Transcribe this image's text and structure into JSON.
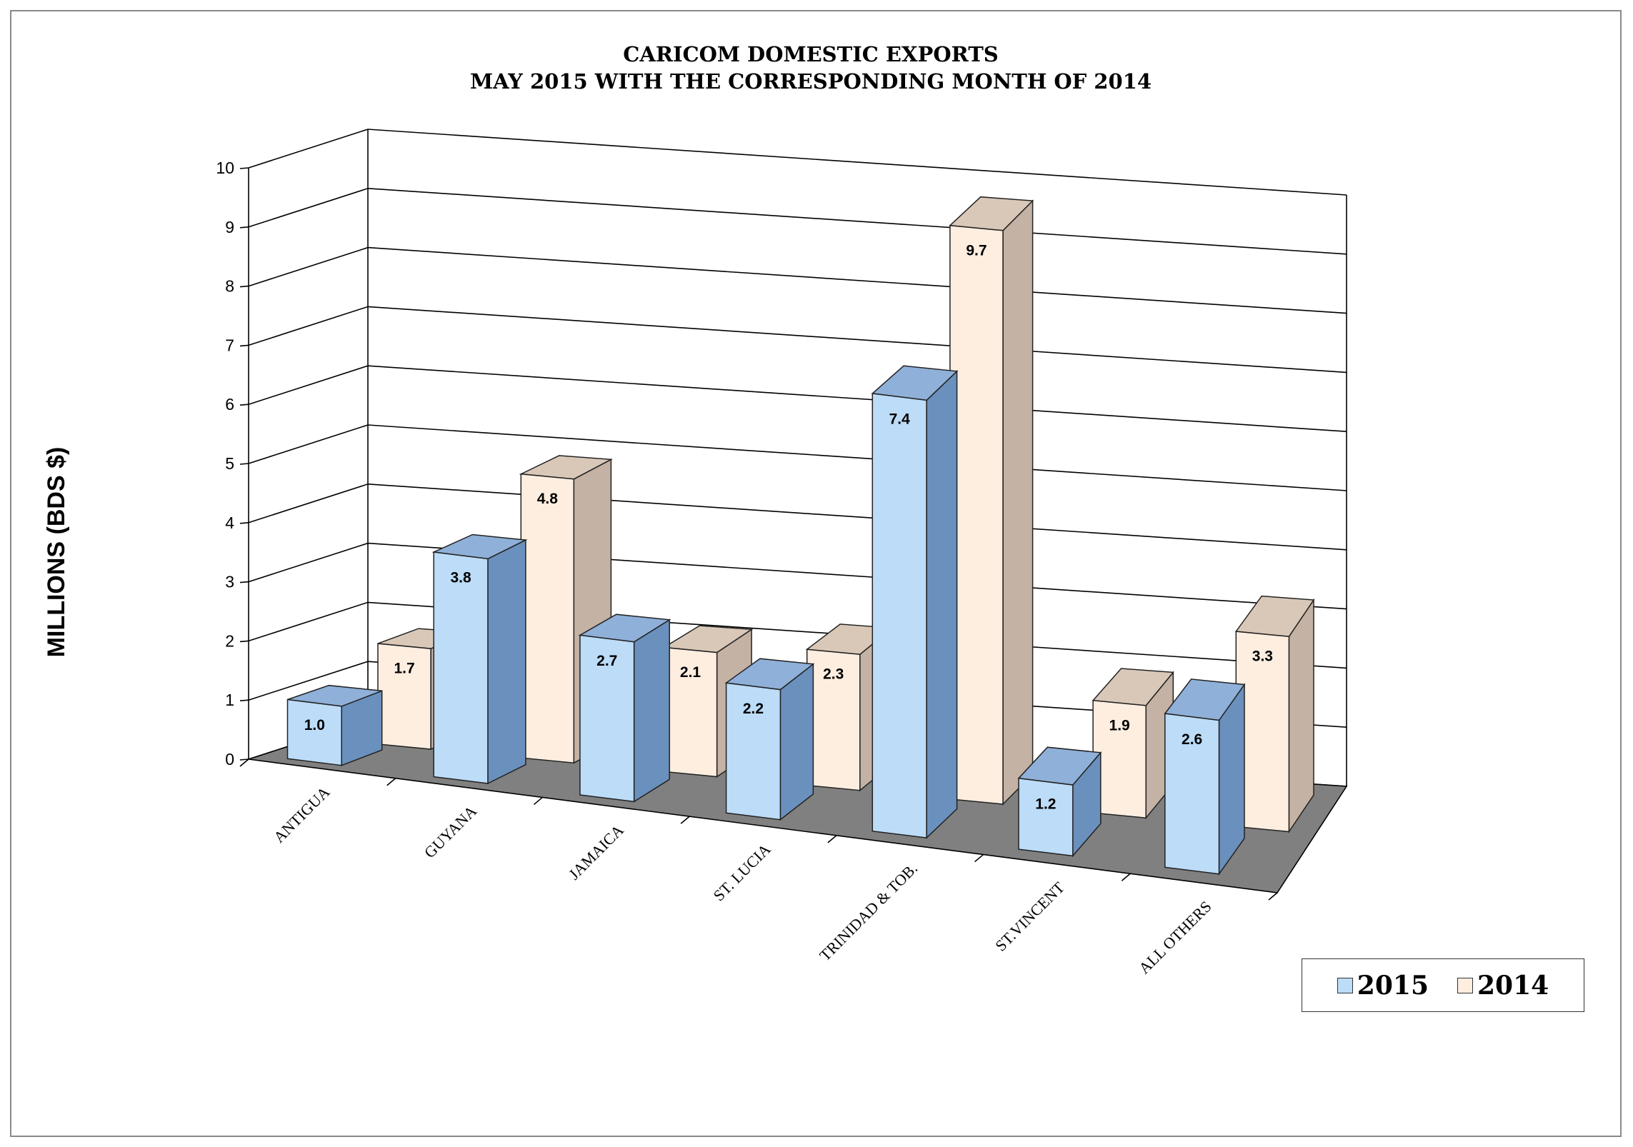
{
  "chart_data": {
    "type": "bar",
    "title": "CARICOM DOMESTIC EXPORTS",
    "subtitle": "MAY 2015 WITH THE CORRESPONDING MONTH OF 2014",
    "ylabel": "MILLIONS (BDS $)",
    "xlabel": "",
    "ylim": [
      0,
      10
    ],
    "yticks": [
      "0",
      "1",
      "2",
      "3",
      "4",
      "5",
      "6",
      "7",
      "8",
      "9",
      "10"
    ],
    "categories": [
      "ANTIGUA",
      "GUYANA",
      "JAMAICA",
      "ST. LUCIA",
      "TRINIDAD & TOB.",
      "ST.VINCENT",
      "ALL OTHERS"
    ],
    "series": [
      {
        "name": "2015",
        "values": [
          1.0,
          3.8,
          2.7,
          2.2,
          7.4,
          1.2,
          2.6
        ],
        "labels": [
          "1.0",
          "3.8",
          "2.7",
          "2.2",
          "7.4",
          "1.2",
          "2.6"
        ],
        "color": "#bcdcf8",
        "side_color": "#6a90bd",
        "top_color": "#8fb0d8"
      },
      {
        "name": "2014",
        "values": [
          1.7,
          4.8,
          2.1,
          2.3,
          9.7,
          1.9,
          3.3
        ],
        "labels": [
          "1.7",
          "4.8",
          "2.1",
          "2.3",
          "9.7",
          "1.9",
          "3.3"
        ],
        "color": "#fdeee0",
        "side_color": "#c4b2a4",
        "top_color": "#d9c8b8"
      }
    ],
    "grid": true,
    "legend_position": "bottom-right",
    "floor_color": "#808080"
  }
}
